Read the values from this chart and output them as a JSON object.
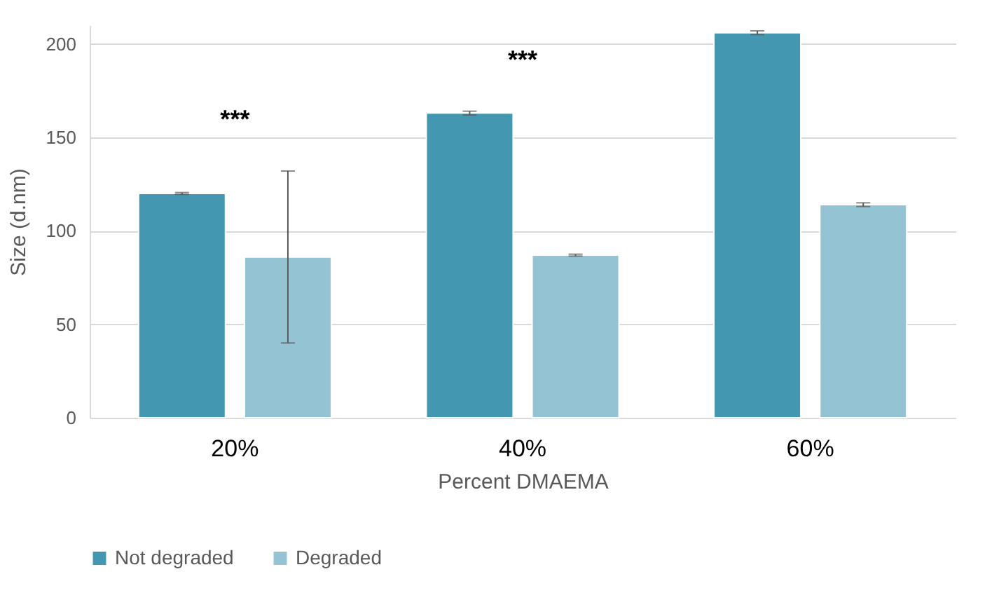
{
  "chart_data": {
    "type": "bar",
    "xlabel": "Percent DMAEMA",
    "ylabel": "Size (d.nm)",
    "categories": [
      "20%",
      "40%",
      "60%"
    ],
    "series": [
      {
        "name": "Not degraded",
        "color": "#4397b0",
        "values": [
          120,
          163,
          206
        ],
        "errors": [
          0.5,
          1,
          1
        ]
      },
      {
        "name": "Degraded",
        "color": "#94c3d4",
        "values": [
          86,
          87,
          114
        ],
        "errors": [
          46,
          0.5,
          1
        ]
      }
    ],
    "ylim": [
      0,
      210
    ],
    "yticks": [
      0,
      50,
      100,
      150,
      200
    ],
    "grid": "y",
    "legend": "bottom",
    "annotations": [
      "***",
      "***"
    ]
  }
}
